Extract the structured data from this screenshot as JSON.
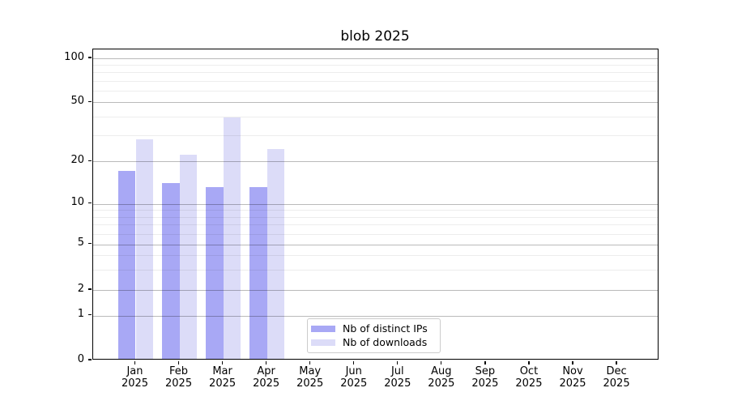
{
  "title": "blob 2025",
  "chart_data": {
    "type": "bar",
    "title": "blob 2025",
    "months": [
      "Jan",
      "Feb",
      "Mar",
      "Apr",
      "May",
      "Jun",
      "Jul",
      "Aug",
      "Sep",
      "Oct",
      "Nov",
      "Dec"
    ],
    "year": "2025",
    "categories": [
      "Jan 2025",
      "Feb 2025",
      "Mar 2025",
      "Apr 2025",
      "May 2025",
      "Jun 2025",
      "Jul 2025",
      "Aug 2025",
      "Sep 2025",
      "Oct 2025",
      "Nov 2025",
      "Dec 2025"
    ],
    "series": [
      {
        "name": "Nb of distinct IPs",
        "color": "#a8a8f5",
        "values": [
          17,
          14,
          13,
          13,
          null,
          null,
          null,
          null,
          null,
          null,
          null,
          null
        ]
      },
      {
        "name": "Nb of downloads",
        "color": "#dcdcf8",
        "values": [
          28,
          22,
          39,
          24,
          null,
          null,
          null,
          null,
          null,
          null,
          null,
          null
        ]
      }
    ],
    "y_ticks": [
      0,
      1,
      2,
      5,
      10,
      20,
      50,
      100
    ],
    "y_scale": "log-like (0,1,2,5,10,20,50,100)",
    "ylim": [
      0,
      110
    ],
    "grid": "horizontal major + minor",
    "legend_position": "bottom-center inside plot"
  }
}
